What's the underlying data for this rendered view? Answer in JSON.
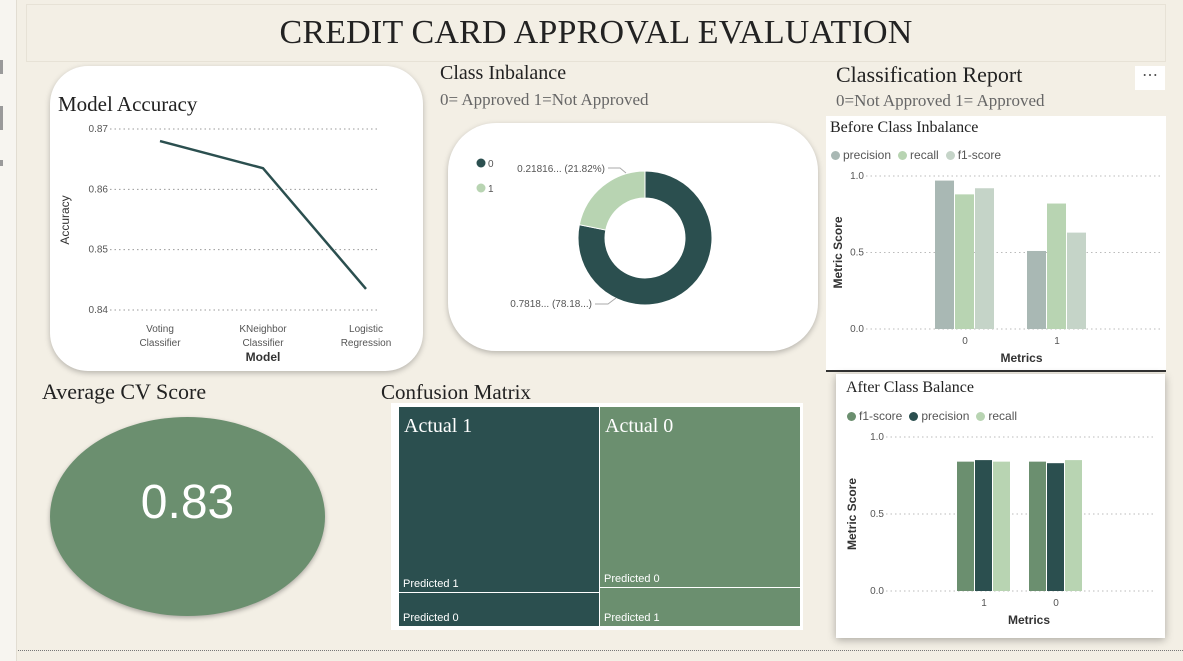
{
  "page_title": "CREDIT CARD APPROVAL EVALUATION",
  "colors": {
    "dark": "#2b4f4f",
    "mid": "#6b8f6f",
    "light": "#b8d4b2",
    "gray": "#a9b8b4",
    "bg": "#f3efe5"
  },
  "model_accuracy": {
    "title": "Model Accuracy",
    "chart_data": {
      "type": "line",
      "categories": [
        "Voting Classifier",
        "KNeighbor Classifier",
        "Logistic Regression"
      ],
      "values": [
        0.868,
        0.8635,
        0.8435
      ],
      "xlabel": "Model",
      "ylabel": "Accuracy",
      "ylim": [
        0.84,
        0.87
      ],
      "yticks": [
        "0.87",
        "0.86",
        "0.85",
        "0.84"
      ],
      "grid": true
    }
  },
  "class_imbalance": {
    "title": "Class Inbalance",
    "subtitle": "0= Approved 1=Not Approved",
    "chart_data": {
      "type": "pie",
      "labels": [
        "0",
        "1"
      ],
      "values": [
        0.7818,
        0.21816
      ],
      "data_labels": [
        "0.7818... (78.18...)",
        "0.21816... (21.82%)"
      ],
      "legend_position": "top-left"
    }
  },
  "classification_report": {
    "title": "Classification Report",
    "subtitle": "0=Not Approved 1= Approved",
    "more_options": "⋯",
    "before": {
      "title": "Before Class Inbalance",
      "chart_data": {
        "type": "bar",
        "categories": [
          "0",
          "1"
        ],
        "series": [
          {
            "name": "precision",
            "values": [
              0.97,
              0.51
            ]
          },
          {
            "name": "recall",
            "values": [
              0.88,
              0.82
            ]
          },
          {
            "name": "f1-score",
            "values": [
              0.92,
              0.63
            ]
          }
        ],
        "xlabel": "Metrics",
        "ylabel": "Metric Score",
        "ylim": [
          0,
          1.0
        ],
        "yticks": [
          "1.0",
          "0.5",
          "0.0"
        ],
        "legend_position": "top-left"
      }
    },
    "after": {
      "title": "After Class Balance",
      "chart_data": {
        "type": "bar",
        "categories": [
          "1",
          "0"
        ],
        "series": [
          {
            "name": "f1-score",
            "values": [
              0.84,
              0.84
            ]
          },
          {
            "name": "precision",
            "values": [
              0.85,
              0.83
            ]
          },
          {
            "name": "recall",
            "values": [
              0.84,
              0.85
            ]
          }
        ],
        "xlabel": "Metrics",
        "ylabel": "Metric Score",
        "ylim": [
          0,
          1.0
        ],
        "yticks": [
          "1.0",
          "0.5",
          "0.0"
        ],
        "legend_position": "top-left"
      }
    }
  },
  "average_cv": {
    "title": "Average CV Score",
    "value": "0.83"
  },
  "confusion_matrix": {
    "title": "Confusion Matrix",
    "actual_1": "Actual 1",
    "actual_0": "Actual 0",
    "a1_predicted_1": "Predicted 1",
    "a1_predicted_0": "Predicted 0",
    "a0_predicted_0": "Predicted 0",
    "a0_predicted_1": "Predicted 1"
  }
}
